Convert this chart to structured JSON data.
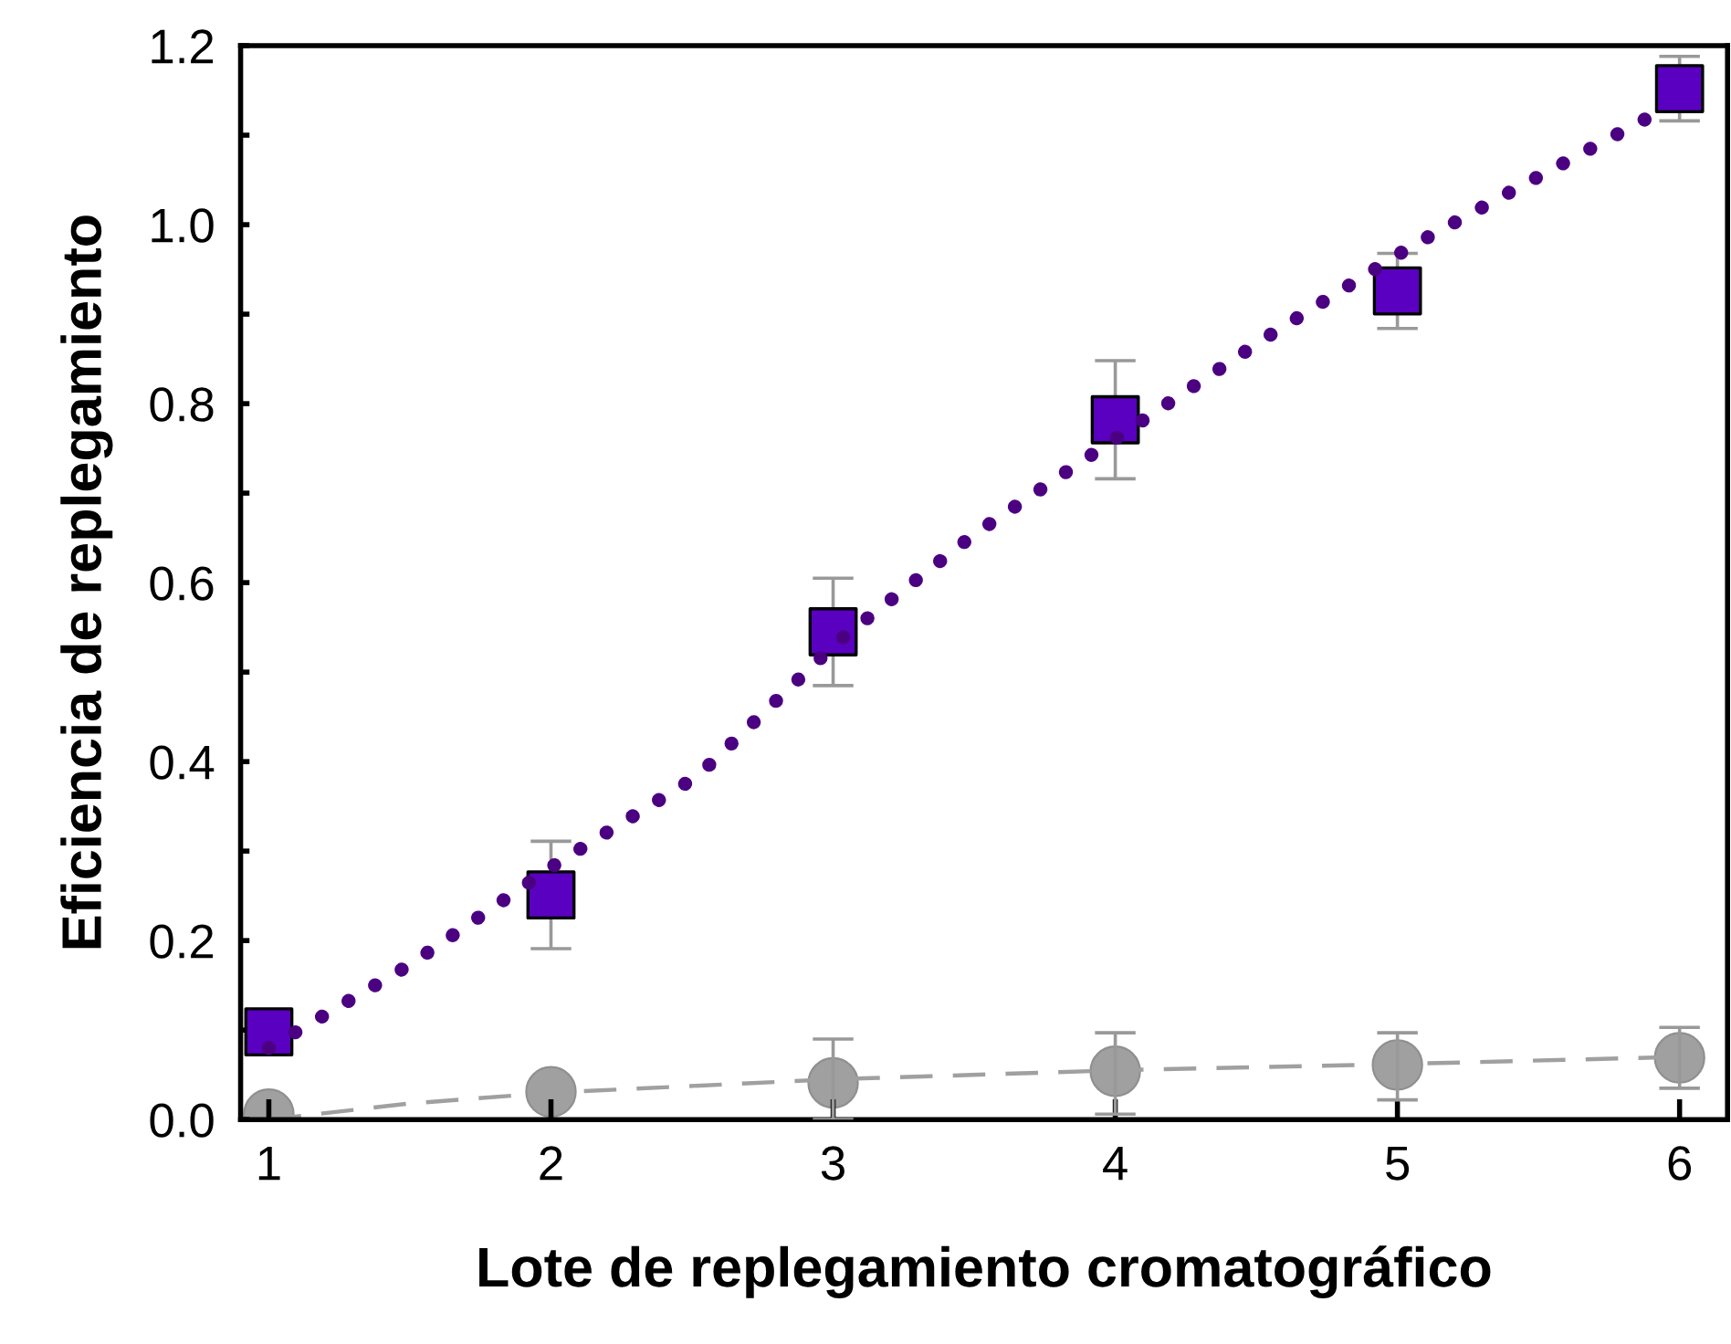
{
  "chart_data": {
    "type": "scatter",
    "xlabel": "Lote de replegamiento cromatográfico",
    "ylabel": "Eficiencia de replegamiento",
    "xlim": [
      0.9,
      6.17
    ],
    "xticks": [
      1,
      2,
      3,
      4,
      5,
      6
    ],
    "ylim": [
      0,
      1.2
    ],
    "yticks": [
      {
        "value": 0,
        "label": "0.0"
      },
      {
        "value": 0.1,
        "label": null
      },
      {
        "value": 0.2,
        "label": "0.2"
      },
      {
        "value": 0.3,
        "label": null
      },
      {
        "value": 0.4,
        "label": "0.4"
      },
      {
        "value": 0.5,
        "label": null
      },
      {
        "value": 0.6,
        "label": "0.6"
      },
      {
        "value": 0.7,
        "label": null
      },
      {
        "value": 0.8,
        "label": "0.8"
      },
      {
        "value": 0.9,
        "label": null
      },
      {
        "value": 1.0,
        "label": "1.0"
      },
      {
        "value": 1.1,
        "label": null
      },
      {
        "value": 1.2,
        "label": "1.2"
      }
    ],
    "grid": false,
    "legend": false,
    "series": [
      {
        "type": "line",
        "color": "#4b0082",
        "line_style": "dotted",
        "marker": "none",
        "x": [
          1,
          1.5,
          2.02,
          2.52,
          3.02,
          3.5,
          3.94,
          4.55,
          5.05,
          5.46,
          5.95
        ],
        "values": [
          0.08,
          0.173,
          0.286,
          0.384,
          0.535,
          0.654,
          0.748,
          0.877,
          0.976,
          1.047,
          1.13
        ]
      },
      {
        "type": "line",
        "color": "#a0a0a0",
        "line_style": "dashed",
        "marker": "none",
        "x": [
          1,
          1.5,
          2,
          3,
          4,
          5,
          6
        ],
        "values": [
          0.0,
          0.018,
          0.03,
          0.045,
          0.055,
          0.062,
          0.07
        ]
      },
      {
        "color": "#5a00c0",
        "marker": "square",
        "x": [
          1,
          2,
          3,
          4,
          5,
          6
        ],
        "values": [
          0.098,
          0.251,
          0.545,
          0.782,
          0.926,
          1.152
        ],
        "errors": [
          null,
          0.06,
          0.06,
          0.066,
          0.042,
          0.036
        ]
      },
      {
        "color": "#a0a0a0",
        "marker": "circle",
        "x": [
          1,
          2,
          3,
          4,
          5,
          6
        ],
        "values": [
          0.006,
          0.031,
          0.041,
          0.054,
          0.061,
          0.069
        ],
        "errors": [
          null,
          null,
          [
            0.0,
            0.09
          ],
          [
            0.006,
            0.097
          ],
          [
            0.022,
            0.097
          ],
          [
            0.035,
            0.103
          ]
        ]
      }
    ]
  }
}
